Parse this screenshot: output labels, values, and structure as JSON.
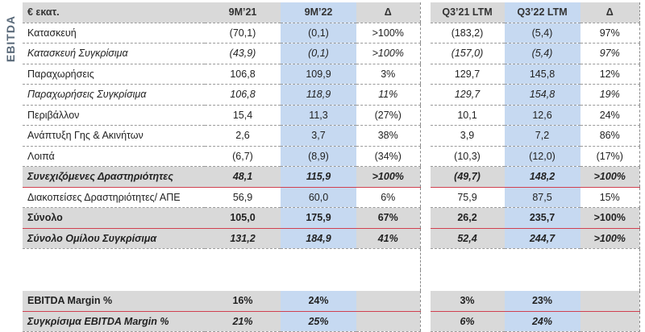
{
  "side_label": "EBITDA",
  "header": [
    "€ εκατ.",
    "9M’21",
    "9M’22",
    "Δ",
    "Q3’21 LTM",
    "Q3’22 LTM",
    "Δ"
  ],
  "rows": [
    {
      "label": "Κατασκευή",
      "v": [
        "(70,1)",
        "(0,1)",
        ">100%",
        "(183,2)",
        "(5,4)",
        "97%"
      ]
    },
    {
      "label": "Κατασκευή Συγκρίσιμα",
      "v": [
        "(43,9)",
        "(0,1)",
        ">100%",
        "(157,0)",
        "(5,4)",
        "97%"
      ]
    },
    {
      "label": "Παραχωρήσεις",
      "v": [
        "106,8",
        "109,9",
        "3%",
        "129,7",
        "145,8",
        "12%"
      ]
    },
    {
      "label": "Παραχωρήσεις Συγκρίσιμα",
      "v": [
        "106,8",
        "118,9",
        "11%",
        "129,7",
        "154,8",
        "19%"
      ]
    },
    {
      "label": "Περιβάλλον",
      "v": [
        "15,4",
        "11,3",
        "(27%)",
        "10,1",
        "12,6",
        "24%"
      ]
    },
    {
      "label": "Ανάπτυξη Γης & Ακινήτων",
      "v": [
        "2,6",
        "3,7",
        "38%",
        "3,9",
        "7,2",
        "86%"
      ]
    },
    {
      "label": "Λοιπά",
      "v": [
        "(6,7)",
        "(8,9)",
        "(34%)",
        "(10,3)",
        "(12,0)",
        "(17%)"
      ]
    },
    {
      "label": "Συνεχιζόμενες Δραστηριότητες",
      "v": [
        "48,1",
        "115,9",
        ">100%",
        "(49,7)",
        "148,2",
        ">100%"
      ]
    },
    {
      "label": "Διακοπείσες Δραστηριότητες/ ΑΠΕ",
      "v": [
        "56,9",
        "60,0",
        "6%",
        "75,9",
        "87,5",
        "15%"
      ]
    },
    {
      "label": "Σύνολο",
      "v": [
        "105,0",
        "175,9",
        "67%",
        "26,2",
        "235,7",
        ">100%"
      ]
    },
    {
      "label": "Σύνολο Ομίλου Συγκρίσιμα",
      "v": [
        "131,2",
        "184,9",
        "41%",
        "52,4",
        "244,7",
        ">100%"
      ]
    }
  ],
  "margins": [
    {
      "label": "EBITDA Margin %",
      "v": [
        "16%",
        "24%",
        "",
        "3%",
        "23%",
        ""
      ]
    },
    {
      "label": "Συγκρίσιμα EBITDA Margin %",
      "v": [
        "21%",
        "25%",
        "",
        "6%",
        "24%",
        ""
      ]
    }
  ]
}
